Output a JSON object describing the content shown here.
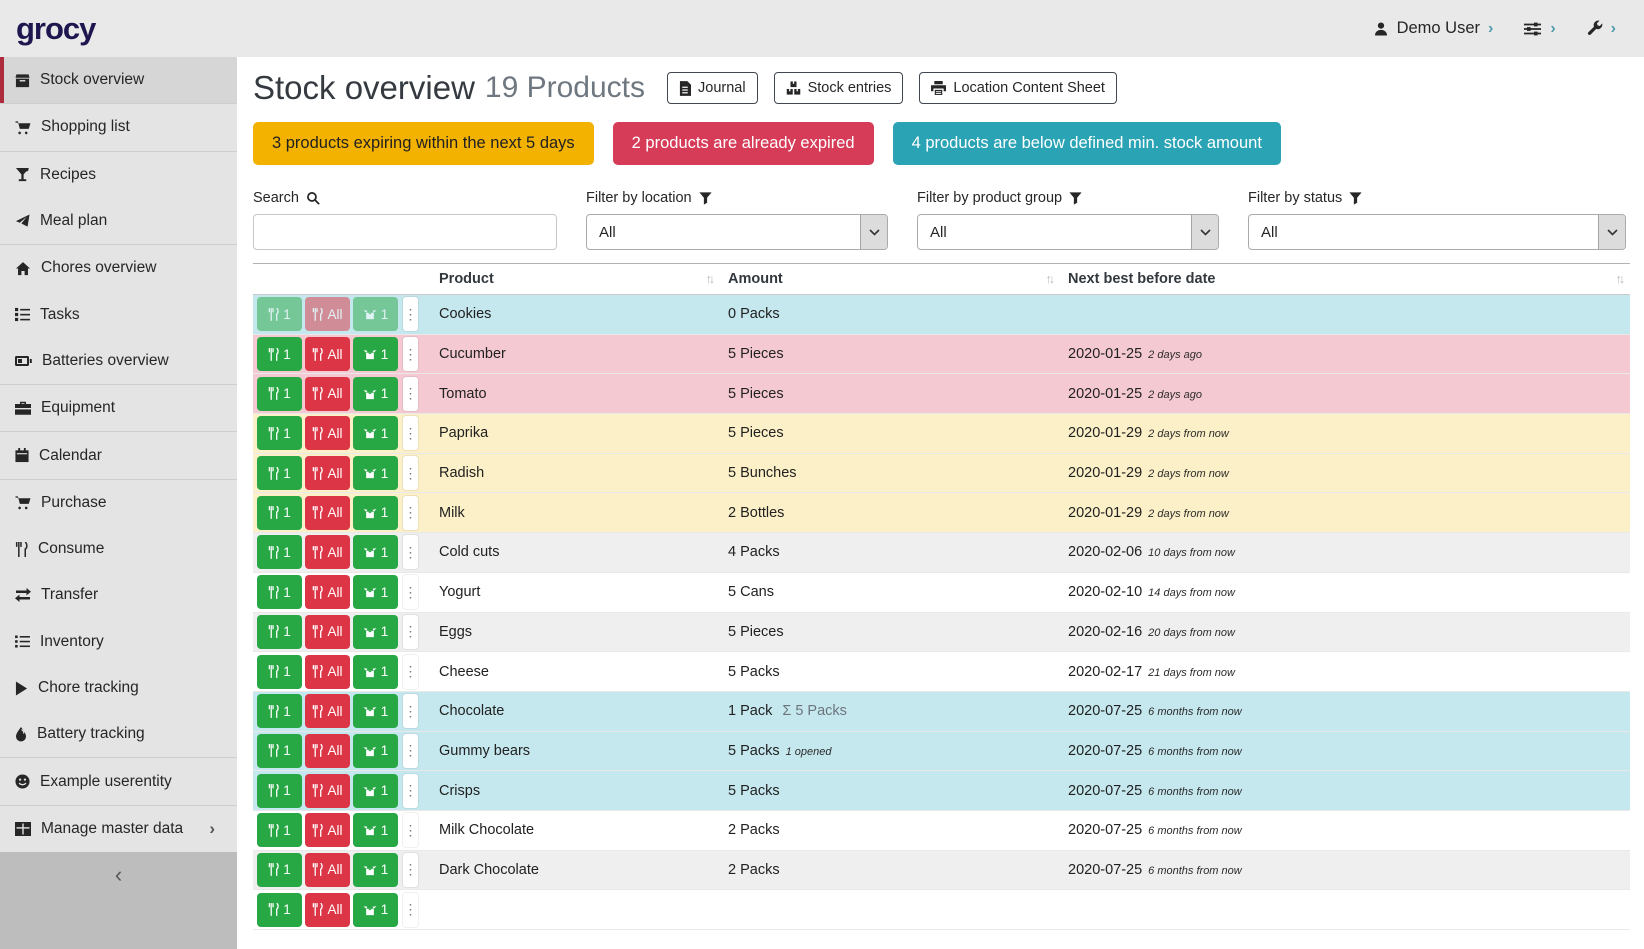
{
  "topbar": {
    "logo": "grocy",
    "user_label": "Demo User",
    "chevron_glyph": "›"
  },
  "sidebar": {
    "collapse_chevron": "‹",
    "items": [
      {
        "label": "Stock overview",
        "icon": "box-icon",
        "active": true,
        "divider_after": true
      },
      {
        "label": "Shopping list",
        "icon": "shopping-cart-icon",
        "divider_after": true
      },
      {
        "label": "Recipes",
        "icon": "cocktail-icon"
      },
      {
        "label": "Meal plan",
        "icon": "paper-plane-icon",
        "divider_after": true
      },
      {
        "label": "Chores overview",
        "icon": "home-icon"
      },
      {
        "label": "Tasks",
        "icon": "tasks-icon"
      },
      {
        "label": "Batteries overview",
        "icon": "battery-icon",
        "divider_after": true
      },
      {
        "label": "Equipment",
        "icon": "toolbox-icon",
        "divider_after": true
      },
      {
        "label": "Calendar",
        "icon": "calendar-icon",
        "divider_after": true
      },
      {
        "label": "Purchase",
        "icon": "shopping-cart-icon"
      },
      {
        "label": "Consume",
        "icon": "utensils-icon"
      },
      {
        "label": "Transfer",
        "icon": "transfer-icon"
      },
      {
        "label": "Inventory",
        "icon": "list-icon"
      },
      {
        "label": "Chore tracking",
        "icon": "play-icon"
      },
      {
        "label": "Battery tracking",
        "icon": "droplet-icon",
        "divider_after": true
      },
      {
        "label": "Example userentity",
        "icon": "smiley-icon",
        "divider_after": true
      },
      {
        "label": "Manage master data",
        "icon": "table-icon",
        "chevron": "›"
      }
    ]
  },
  "header": {
    "title": "Stock overview",
    "subtitle": "19 Products",
    "buttons": [
      {
        "label": "Journal",
        "icon": "journal-icon"
      },
      {
        "label": "Stock entries",
        "icon": "stock-entries-icon"
      },
      {
        "label": "Location Content Sheet",
        "icon": "print-icon"
      }
    ]
  },
  "alerts": [
    {
      "text": "3 products expiring within the next 5 days",
      "bg": "#f3b200",
      "fg": "#212121"
    },
    {
      "text": "2 products are already expired",
      "bg": "#d63b58",
      "fg": "#ffffff"
    },
    {
      "text": "4 products are below defined min. stock amount",
      "bg": "#2aa3b5",
      "fg": "#ffffff"
    }
  ],
  "filters": {
    "search_label": "Search",
    "location_label": "Filter by location",
    "product_group_label": "Filter by product group",
    "status_label": "Filter by status",
    "search_value": "",
    "location_value": "All",
    "product_group_value": "All",
    "status_value": "All"
  },
  "table": {
    "columns": [
      "Product",
      "Amount",
      "Next best before date"
    ],
    "sort_glyph": "↑↓",
    "menu_glyph": "⋮",
    "action_buttons": {
      "consume_one": "1",
      "consume_all": "All",
      "open_one": "1"
    },
    "rows": [
      {
        "product": "Cookies",
        "amount": "0 Packs",
        "amount_sum": "",
        "amount_note": "",
        "date": "",
        "date_note": "",
        "status": "info",
        "disabled": true
      },
      {
        "product": "Cucumber",
        "amount": "5 Pieces",
        "amount_sum": "",
        "amount_note": "",
        "date": "2020-01-25",
        "date_note": "2 days ago",
        "status": "danger"
      },
      {
        "product": "Tomato",
        "amount": "5 Pieces",
        "amount_sum": "",
        "amount_note": "",
        "date": "2020-01-25",
        "date_note": "2 days ago",
        "status": "danger"
      },
      {
        "product": "Paprika",
        "amount": "5 Pieces",
        "amount_sum": "",
        "amount_note": "",
        "date": "2020-01-29",
        "date_note": "2 days from now",
        "status": "warning"
      },
      {
        "product": "Radish",
        "amount": "5 Bunches",
        "amount_sum": "",
        "amount_note": "",
        "date": "2020-01-29",
        "date_note": "2 days from now",
        "status": "warning"
      },
      {
        "product": "Milk",
        "amount": "2 Bottles",
        "amount_sum": "",
        "amount_note": "",
        "date": "2020-01-29",
        "date_note": "2 days from now",
        "status": "warning"
      },
      {
        "product": "Cold cuts",
        "amount": "4 Packs",
        "amount_sum": "",
        "amount_note": "",
        "date": "2020-02-06",
        "date_note": "10 days from now",
        "status": "none"
      },
      {
        "product": "Yogurt",
        "amount": "5 Cans",
        "amount_sum": "",
        "amount_note": "",
        "date": "2020-02-10",
        "date_note": "14 days from now",
        "status": "none"
      },
      {
        "product": "Eggs",
        "amount": "5 Pieces",
        "amount_sum": "",
        "amount_note": "",
        "date": "2020-02-16",
        "date_note": "20 days from now",
        "status": "none"
      },
      {
        "product": "Cheese",
        "amount": "5 Packs",
        "amount_sum": "",
        "amount_note": "",
        "date": "2020-02-17",
        "date_note": "21 days from now",
        "status": "none"
      },
      {
        "product": "Chocolate",
        "amount": "1 Pack",
        "amount_sum": "Σ 5 Packs",
        "amount_note": "",
        "date": "2020-07-25",
        "date_note": "6 months from now",
        "status": "info"
      },
      {
        "product": "Gummy bears",
        "amount": "5 Packs",
        "amount_sum": "",
        "amount_note": "1 opened",
        "date": "2020-07-25",
        "date_note": "6 months from now",
        "status": "info"
      },
      {
        "product": "Crisps",
        "amount": "5 Packs",
        "amount_sum": "",
        "amount_note": "",
        "date": "2020-07-25",
        "date_note": "6 months from now",
        "status": "info"
      },
      {
        "product": "Milk Chocolate",
        "amount": "2 Packs",
        "amount_sum": "",
        "amount_note": "",
        "date": "2020-07-25",
        "date_note": "6 months from now",
        "status": "none"
      },
      {
        "product": "Dark Chocolate",
        "amount": "2 Packs",
        "amount_sum": "",
        "amount_note": "",
        "date": "2020-07-25",
        "date_note": "6 months from now",
        "status": "none"
      },
      {
        "product": "",
        "amount": "",
        "amount_sum": "",
        "amount_note": "",
        "date": "",
        "date_note": "",
        "status": "none"
      }
    ]
  }
}
